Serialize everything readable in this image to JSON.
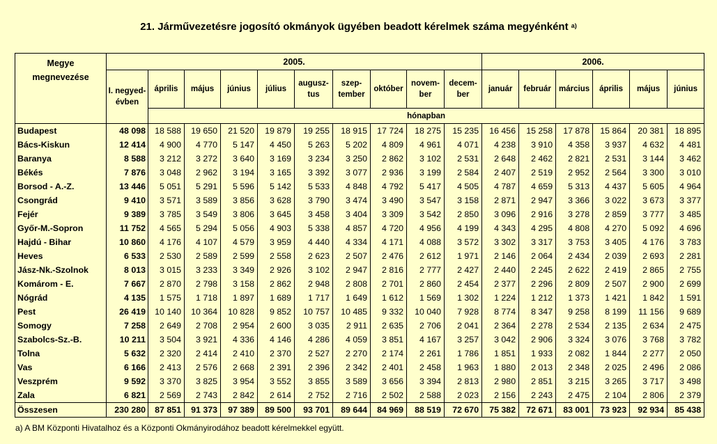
{
  "title": "21. Járművezetésre jogosító okmányok ügyében beadott kérelmek száma megyénként",
  "title_note": "a)",
  "header": {
    "region_label_1": "Megye",
    "region_label_2": "megnevezése",
    "year_2005": "2005.",
    "year_2006": "2006.",
    "unit": "hónapban",
    "months": [
      "I. negyed-évben",
      "április",
      "május",
      "június",
      "július",
      "augusz-tus",
      "szep-tember",
      "október",
      "novem-ber",
      "decem-ber",
      "január",
      "február",
      "március",
      "április",
      "május",
      "június"
    ]
  },
  "rows": [
    {
      "name": "Budapest",
      "values": [
        "48 098",
        "18 588",
        "19 650",
        "21 520",
        "19 879",
        "19 255",
        "18 915",
        "17 724",
        "18 275",
        "15 235",
        "16 456",
        "15 258",
        "17 878",
        "15 864",
        "20 381",
        "18 895"
      ]
    },
    {
      "name": "Bács-Kiskun",
      "values": [
        "12 414",
        "4 900",
        "4 770",
        "5 147",
        "4 450",
        "5 263",
        "5 202",
        "4 809",
        "4 961",
        "4 071",
        "4 238",
        "3 910",
        "4 358",
        "3 937",
        "4 632",
        "4 481"
      ]
    },
    {
      "name": "Baranya",
      "values": [
        "8 588",
        "3 212",
        "3 272",
        "3 640",
        "3 169",
        "3 234",
        "3 250",
        "2 862",
        "3 102",
        "2 531",
        "2 648",
        "2 462",
        "2 821",
        "2 531",
        "3 144",
        "3 462"
      ]
    },
    {
      "name": "Békés",
      "values": [
        "7 876",
        "3 048",
        "2 962",
        "3 194",
        "3 165",
        "3 392",
        "3 077",
        "2 936",
        "3 199",
        "2 584",
        "2 407",
        "2 519",
        "2 952",
        "2 564",
        "3 300",
        "3 010"
      ]
    },
    {
      "name": "Borsod - A.-Z.",
      "values": [
        "13 446",
        "5 051",
        "5 291",
        "5 596",
        "5 142",
        "5 533",
        "4 848",
        "4 792",
        "5 417",
        "4 505",
        "4 787",
        "4 659",
        "5 313",
        "4 437",
        "5 605",
        "4 964"
      ]
    },
    {
      "name": "Csongrád",
      "values": [
        "9 410",
        "3 571",
        "3 589",
        "3 856",
        "3 628",
        "3 790",
        "3 474",
        "3 490",
        "3 547",
        "3 158",
        "2 871",
        "2 947",
        "3 366",
        "3 022",
        "3 673",
        "3 377"
      ]
    },
    {
      "name": "Fejér",
      "values": [
        "9 389",
        "3 785",
        "3 549",
        "3 806",
        "3 645",
        "3 458",
        "3 404",
        "3 309",
        "3 542",
        "2 850",
        "3 096",
        "2 916",
        "3 278",
        "2 859",
        "3 777",
        "3 485"
      ]
    },
    {
      "name": "Győr-M.-Sopron",
      "values": [
        "11 752",
        "4 565",
        "5 294",
        "5 056",
        "4 903",
        "5 338",
        "4 857",
        "4 720",
        "4 956",
        "4 199",
        "4 343",
        "4 295",
        "4 808",
        "4 270",
        "5 092",
        "4 696"
      ]
    },
    {
      "name": "Hajdú - Bihar",
      "values": [
        "10 860",
        "4 176",
        "4 107",
        "4 579",
        "3 959",
        "4 440",
        "4 334",
        "4 171",
        "4 088",
        "3 572",
        "3 302",
        "3 317",
        "3 753",
        "3 405",
        "4 176",
        "3 783"
      ]
    },
    {
      "name": "Heves",
      "values": [
        "6 533",
        "2 530",
        "2 589",
        "2 599",
        "2 558",
        "2 623",
        "2 507",
        "2 476",
        "2 612",
        "1 971",
        "2 146",
        "2 064",
        "2 434",
        "2 039",
        "2 693",
        "2 281"
      ]
    },
    {
      "name": "Jász-Nk.-Szolnok",
      "values": [
        "8 013",
        "3 015",
        "3 233",
        "3 349",
        "2 926",
        "3 102",
        "2 947",
        "2 816",
        "2 777",
        "2 427",
        "2 440",
        "2 245",
        "2 622",
        "2 419",
        "2 865",
        "2 755"
      ]
    },
    {
      "name": "Komárom - E.",
      "values": [
        "7 667",
        "2 870",
        "2 798",
        "3 158",
        "2 862",
        "2 948",
        "2 808",
        "2 701",
        "2 860",
        "2 454",
        "2 377",
        "2 296",
        "2 809",
        "2 507",
        "2 900",
        "2 699"
      ]
    },
    {
      "name": "Nógrád",
      "values": [
        "4 135",
        "1 575",
        "1 718",
        "1 897",
        "1 689",
        "1 717",
        "1 649",
        "1 612",
        "1 569",
        "1 302",
        "1 224",
        "1 212",
        "1 373",
        "1 421",
        "1 842",
        "1 591"
      ]
    },
    {
      "name": "Pest",
      "values": [
        "26 419",
        "10 140",
        "10 364",
        "10 828",
        "9 852",
        "10 757",
        "10 485",
        "9 332",
        "10 040",
        "7 928",
        "8 774",
        "8 347",
        "9 258",
        "8 199",
        "11 156",
        "9 689"
      ]
    },
    {
      "name": "Somogy",
      "values": [
        "7 258",
        "2 649",
        "2 708",
        "2 954",
        "2 600",
        "3 035",
        "2 911",
        "2 635",
        "2 706",
        "2 041",
        "2 364",
        "2 278",
        "2 534",
        "2 135",
        "2 634",
        "2 475"
      ]
    },
    {
      "name": "Szabolcs-Sz.-B.",
      "values": [
        "10 211",
        "3 504",
        "3 921",
        "4 336",
        "4 146",
        "4 286",
        "4 059",
        "3 851",
        "4 167",
        "3 257",
        "3 042",
        "2 906",
        "3 324",
        "3 076",
        "3 768",
        "3 782"
      ]
    },
    {
      "name": "Tolna",
      "values": [
        "5 632",
        "2 320",
        "2 414",
        "2 410",
        "2 370",
        "2 527",
        "2 270",
        "2 174",
        "2 261",
        "1 786",
        "1 851",
        "1 933",
        "2 082",
        "1 844",
        "2 277",
        "2 050"
      ]
    },
    {
      "name": "Vas",
      "values": [
        "6 166",
        "2 413",
        "2 576",
        "2 668",
        "2 391",
        "2 396",
        "2 342",
        "2 401",
        "2 458",
        "1 963",
        "1 880",
        "2 013",
        "2 348",
        "2 025",
        "2 496",
        "2 086"
      ]
    },
    {
      "name": "Veszprém",
      "values": [
        "9 592",
        "3 370",
        "3 825",
        "3 954",
        "3 552",
        "3 855",
        "3 589",
        "3 656",
        "3 394",
        "2 813",
        "2 980",
        "2 851",
        "3 215",
        "3 265",
        "3 717",
        "3 498"
      ]
    },
    {
      "name": "Zala",
      "values": [
        "6 821",
        "2 569",
        "2 743",
        "2 842",
        "2 614",
        "2 752",
        "2 716",
        "2 502",
        "2 588",
        "2 023",
        "2 156",
        "2 243",
        "2 475",
        "2 104",
        "2 806",
        "2 379"
      ]
    }
  ],
  "total": {
    "name": "Összesen",
    "values": [
      "230 280",
      "87 851",
      "91 373",
      "97 389",
      "89 500",
      "93 701",
      "89 644",
      "84 969",
      "88 519",
      "72 670",
      "75 382",
      "72 671",
      "83 001",
      "73 923",
      "92 934",
      "85 438"
    ]
  },
  "footnote": "a) A BM Központi Hivatalhoz és a Központi Okmányirodához beadott kérelmekkel együtt."
}
